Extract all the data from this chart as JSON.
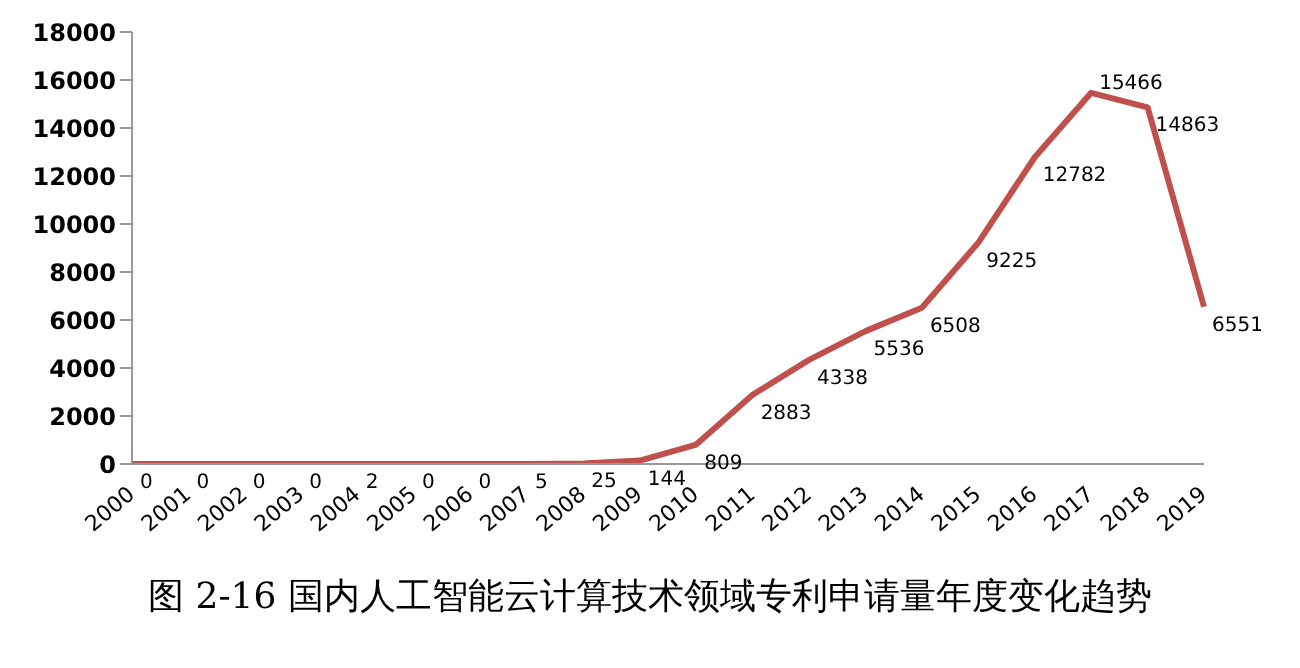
{
  "chart_data": {
    "type": "line",
    "title": "图 2-16 国内人工智能云计算技术领域专利申请量年度变化趋势",
    "categories": [
      "2000",
      "2001",
      "2002",
      "2003",
      "2004",
      "2005",
      "2006",
      "2007",
      "2008",
      "2009",
      "2010",
      "2011",
      "2012",
      "2013",
      "2014",
      "2015",
      "2016",
      "2017",
      "2018",
      "2019"
    ],
    "series": [
      {
        "color": "#c0504d",
        "values": [
          0,
          0,
          0,
          0,
          2,
          0,
          0,
          5,
          25,
          144,
          809,
          2883,
          4338,
          5536,
          6508,
          9225,
          12782,
          15466,
          14863,
          6551
        ]
      }
    ],
    "ylim": [
      0,
      18000
    ],
    "yticks": [
      0,
      2000,
      4000,
      6000,
      8000,
      10000,
      12000,
      14000,
      16000,
      18000
    ],
    "grid": false,
    "legend": false,
    "marker": "none",
    "line_style": "solid",
    "data_labels": true
  }
}
